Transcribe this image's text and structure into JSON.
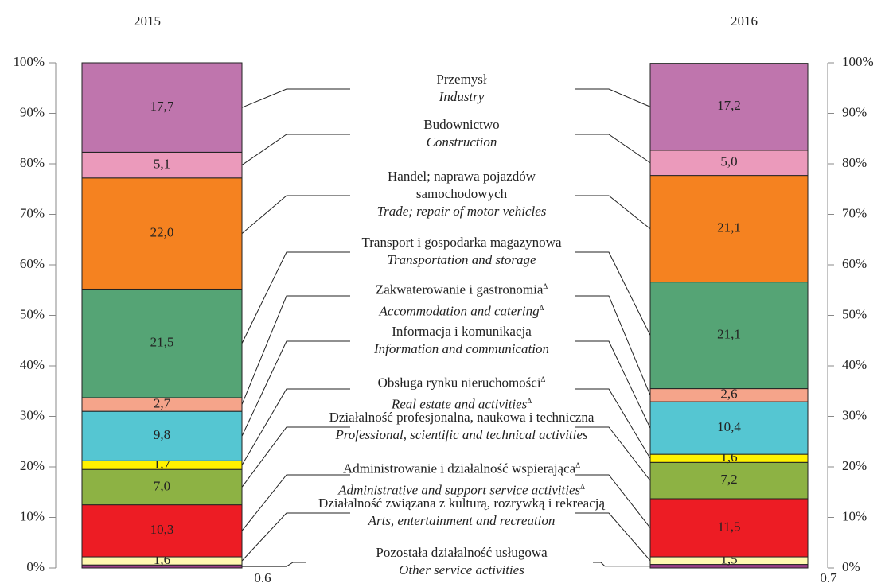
{
  "chart_data": {
    "type": "stacked_bar",
    "categories": [
      "2015",
      "2016"
    ],
    "ylim": [
      0,
      100
    ],
    "yticks": [
      {
        "value": 0,
        "label": "0%"
      },
      {
        "value": 10,
        "label": "10%"
      },
      {
        "value": 20,
        "label": "20%"
      },
      {
        "value": 30,
        "label": "30%"
      },
      {
        "value": 40,
        "label": "40%"
      },
      {
        "value": 50,
        "label": "50%"
      },
      {
        "value": 60,
        "label": "60%"
      },
      {
        "value": 70,
        "label": "70%"
      },
      {
        "value": 80,
        "label": "80%"
      },
      {
        "value": 90,
        "label": "90%"
      },
      {
        "value": 100,
        "label": "100%"
      }
    ],
    "series": [
      {
        "name": "Przemysł",
        "name_en": "Industry",
        "color": "#bf75ad",
        "values": [
          17.7,
          17.2
        ],
        "value_labels": [
          "17,7",
          "17,2"
        ]
      },
      {
        "name": "Budownictwo",
        "name_en": "Construction",
        "color": "#eb9abb",
        "values": [
          5.1,
          5.0
        ],
        "value_labels": [
          "5,1",
          "5,0"
        ]
      },
      {
        "name": "Handel; naprawa pojazdów\nsamochodowych",
        "name_en": "Trade; repair of motor vehicles",
        "color": "#f58220",
        "values": [
          22.0,
          21.1
        ],
        "value_labels": [
          "22,0",
          "21,1"
        ]
      },
      {
        "name": "Transport i gospodarka magazynowa",
        "name_en": "Transportation and storage",
        "color": "#55a475",
        "values": [
          21.5,
          21.1
        ],
        "value_labels": [
          "21,5",
          "21,1"
        ]
      },
      {
        "name": "Zakwaterowanie i gastronomia",
        "name_en": "Accommodation and catering",
        "note_mark": "Δ",
        "color": "#f5a48a",
        "values": [
          2.7,
          2.6
        ],
        "value_labels": [
          "2,7",
          "2,6"
        ]
      },
      {
        "name": "Informacja i komunikacja",
        "name_en": "Information and communication",
        "color": "#55c6d2",
        "values": [
          9.8,
          10.4
        ],
        "value_labels": [
          "9,8",
          "10,4"
        ]
      },
      {
        "name": "Obsługa rynku nieruchomości",
        "name_en": "Real estate and activities",
        "note_mark": "Δ",
        "color": "#fff200",
        "values": [
          1.7,
          1.6
        ],
        "value_labels": [
          "1,7",
          "1,6"
        ]
      },
      {
        "name": "Działalność profesjonalna, naukowa i techniczna",
        "name_en": "Professional, scientific and technical activities",
        "color": "#8db244",
        "values": [
          7.0,
          7.2
        ],
        "value_labels": [
          "7,0",
          "7,2"
        ]
      },
      {
        "name": "Administrowanie i działalność wspierająca",
        "name_en": "Administrative and support service activities",
        "note_mark": "Δ",
        "color": "#ed1c24",
        "values": [
          10.3,
          11.5
        ],
        "value_labels": [
          "10,3",
          "11,5"
        ]
      },
      {
        "name": "Działalność związana z kulturą, rozrywką i rekreacją",
        "name_en": "Arts, entertainment and recreation",
        "color": "#fff9b0",
        "values": [
          1.6,
          1.5
        ],
        "value_labels": [
          "1,6",
          "1,5"
        ]
      },
      {
        "name": "Pozostała działalność usługowa",
        "name_en": "Other service activities",
        "color": "#9a3f87",
        "values": [
          0.6,
          0.7
        ],
        "value_labels": [
          "0.6",
          "0.7"
        ]
      }
    ]
  }
}
